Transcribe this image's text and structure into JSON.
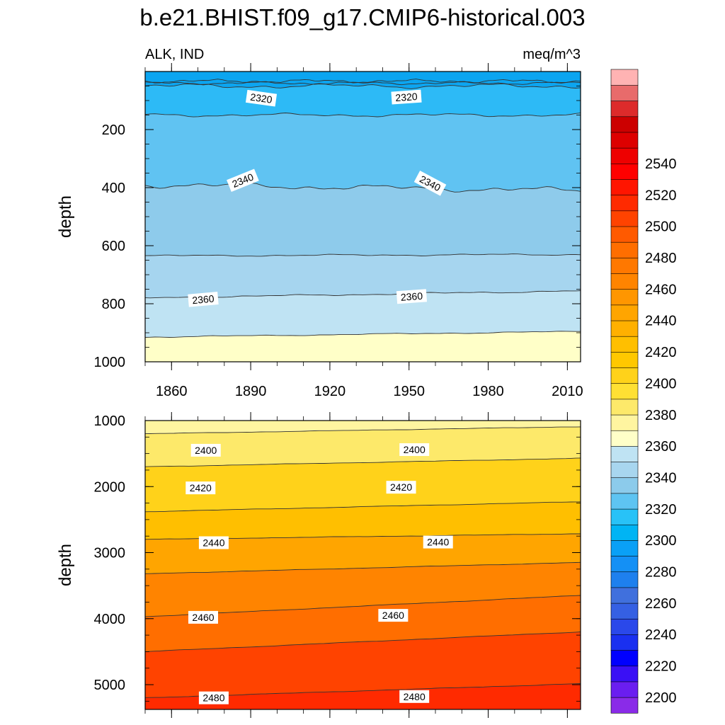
{
  "title": "b.e21.BHIST.f09_g17.CMIP6-historical.003",
  "chart_data": [
    {
      "type": "contour",
      "panel": "upper",
      "left_label": "ALK, IND",
      "right_label": "meq/m^3",
      "ylabel": "depth",
      "xlim": [
        1850,
        2015
      ],
      "ylim": [
        1000,
        0
      ],
      "x_ticks": [
        1860,
        1890,
        1920,
        1950,
        1980,
        2010
      ],
      "y_ticks": [
        200,
        400,
        600,
        800,
        1000
      ],
      "bands": [
        {
          "from_depth": 0,
          "to_depth": 50,
          "level_low": 2300,
          "color": "#0ca5f0"
        },
        {
          "from_depth": 50,
          "to_depth": 150,
          "level_low": 2320,
          "color": "#2dbaf6"
        },
        {
          "from_depth": 150,
          "to_depth": 390,
          "level_low": 2330,
          "color": "#60c3f2"
        },
        {
          "from_depth": 390,
          "to_depth": 635,
          "level_low": 2340,
          "color": "#8ecbeb"
        },
        {
          "from_depth": 635,
          "to_depth": 780,
          "level_low": 2350,
          "color": "#a6d5ef"
        },
        {
          "from_depth": 780,
          "to_depth": 915,
          "level_low": 2360,
          "color": "#bfe3f3"
        },
        {
          "from_depth": 915,
          "to_depth": 1000,
          "level_low": 2370,
          "color": "#ffffc8"
        }
      ],
      "contour_labels": [
        {
          "text": "2320",
          "year": 1894,
          "depth": 92
        },
        {
          "text": "2320",
          "year": 1949,
          "depth": 88
        },
        {
          "text": "2340",
          "year": 1887,
          "depth": 375
        },
        {
          "text": "2340",
          "year": 1958,
          "depth": 385
        },
        {
          "text": "2360",
          "year": 1872,
          "depth": 785
        },
        {
          "text": "2360",
          "year": 1951,
          "depth": 775
        }
      ]
    },
    {
      "type": "contour",
      "panel": "lower",
      "ylabel": "depth",
      "xlim": [
        1850,
        2015
      ],
      "ylim": [
        5375,
        1000
      ],
      "y_ticks": [
        1000,
        2000,
        3000,
        4000,
        5000
      ],
      "bands": [
        {
          "from_depth": 1000,
          "to_depth": 1200,
          "level_low": 2380,
          "color": "#fff5a0"
        },
        {
          "from_depth": 1200,
          "to_depth": 1700,
          "level_low": 2390,
          "color": "#fde96a"
        },
        {
          "from_depth": 1700,
          "to_depth": 2380,
          "level_low": 2400,
          "color": "#ffd21a"
        },
        {
          "from_depth": 2380,
          "to_depth": 2800,
          "level_low": 2420,
          "color": "#ffbf00"
        },
        {
          "from_depth": 2800,
          "to_depth": 3320,
          "level_low": 2430,
          "color": "#ffa500"
        },
        {
          "from_depth": 3320,
          "to_depth": 3970,
          "level_low": 2440,
          "color": "#ff8400"
        },
        {
          "from_depth": 3970,
          "to_depth": 4500,
          "level_low": 2450,
          "color": "#ff6e00"
        },
        {
          "from_depth": 4500,
          "to_depth": 5200,
          "level_low": 2460,
          "color": "#ff4300"
        },
        {
          "from_depth": 5200,
          "to_depth": 5375,
          "level_low": 2470,
          "color": "#ff2a00"
        }
      ],
      "contour_labels": [
        {
          "text": "2400",
          "year": 1873,
          "depth": 1450
        },
        {
          "text": "2400",
          "year": 1952,
          "depth": 1440
        },
        {
          "text": "2420",
          "year": 1871,
          "depth": 2020
        },
        {
          "text": "2420",
          "year": 1947,
          "depth": 2010
        },
        {
          "text": "2440",
          "year": 1876,
          "depth": 2850
        },
        {
          "text": "2440",
          "year": 1961,
          "depth": 2840
        },
        {
          "text": "2460",
          "year": 1872,
          "depth": 3980
        },
        {
          "text": "2460",
          "year": 1944,
          "depth": 3950
        },
        {
          "text": "2480",
          "year": 1876,
          "depth": 5200
        },
        {
          "text": "2480",
          "year": 1952,
          "depth": 5180
        }
      ]
    },
    {
      "type": "colorbar",
      "levels": [
        2200,
        2220,
        2240,
        2260,
        2280,
        2300,
        2320,
        2340,
        2360,
        2380,
        2400,
        2420,
        2440,
        2460,
        2480,
        2500,
        2520,
        2540
      ],
      "colors": [
        "#8a2be8",
        "#6a1ef0",
        "#3a10f5",
        "#0000ff",
        "#1a30f0",
        "#2a48ea",
        "#3560e3",
        "#4070dd",
        "#1e80ee",
        "#1490f5",
        "#0aa0f6",
        "#00b4f4",
        "#28c2f7",
        "#5ec4f2",
        "#8ccbeb",
        "#a8d6ef",
        "#bfe3f3",
        "#ffffc8",
        "#fff5a0",
        "#fde96a",
        "#ffe033",
        "#ffd21a",
        "#ffc800",
        "#ffbf00",
        "#ffb000",
        "#ffa500",
        "#ff9600",
        "#ff8400",
        "#ff7800",
        "#ff6e00",
        "#ff5a00",
        "#ff4300",
        "#ff2a00",
        "#ff1500",
        "#ff0000",
        "#ee0000",
        "#dd0000",
        "#cc0000",
        "#dd2b2b",
        "#e86b6b",
        "#ffb3b3"
      ]
    }
  ]
}
